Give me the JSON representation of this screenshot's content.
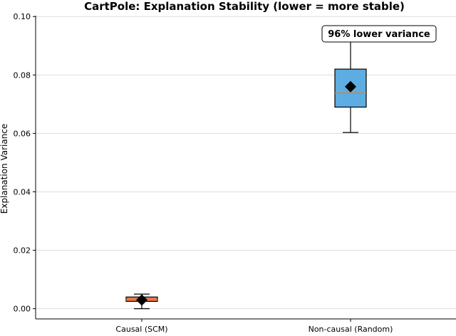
{
  "chart_data": {
    "type": "box",
    "title": "CartPole: Explanation Stability (lower = more stable)",
    "xlabel": "",
    "ylabel": "Explanation Variance",
    "ylim": [
      -0.0035,
      0.1003
    ],
    "yticks": [
      "0.00",
      "0.02",
      "0.04",
      "0.06",
      "0.08",
      "0.10"
    ],
    "ytick_values": [
      0.0,
      0.02,
      0.04,
      0.06,
      0.08,
      0.1
    ],
    "grid": true,
    "categories": [
      "Causal (SCM)",
      "Non-causal (Random)"
    ],
    "boxes": [
      {
        "category": "Causal (SCM)",
        "whisker_low": 0.0,
        "q1": 0.0025,
        "median": 0.003,
        "q3": 0.004,
        "whisker_high": 0.005,
        "mean": 0.003,
        "color": "#e8735b"
      },
      {
        "category": "Non-causal (Random)",
        "whisker_low": 0.0603,
        "q1": 0.069,
        "median": 0.0738,
        "q3": 0.082,
        "whisker_high": 0.0965,
        "mean": 0.076,
        "color": "#5dade2"
      }
    ],
    "median_color": "#e67e22",
    "mean_marker": "diamond",
    "annotation": {
      "text": "96% lower variance",
      "color": "#e74c3c"
    }
  }
}
